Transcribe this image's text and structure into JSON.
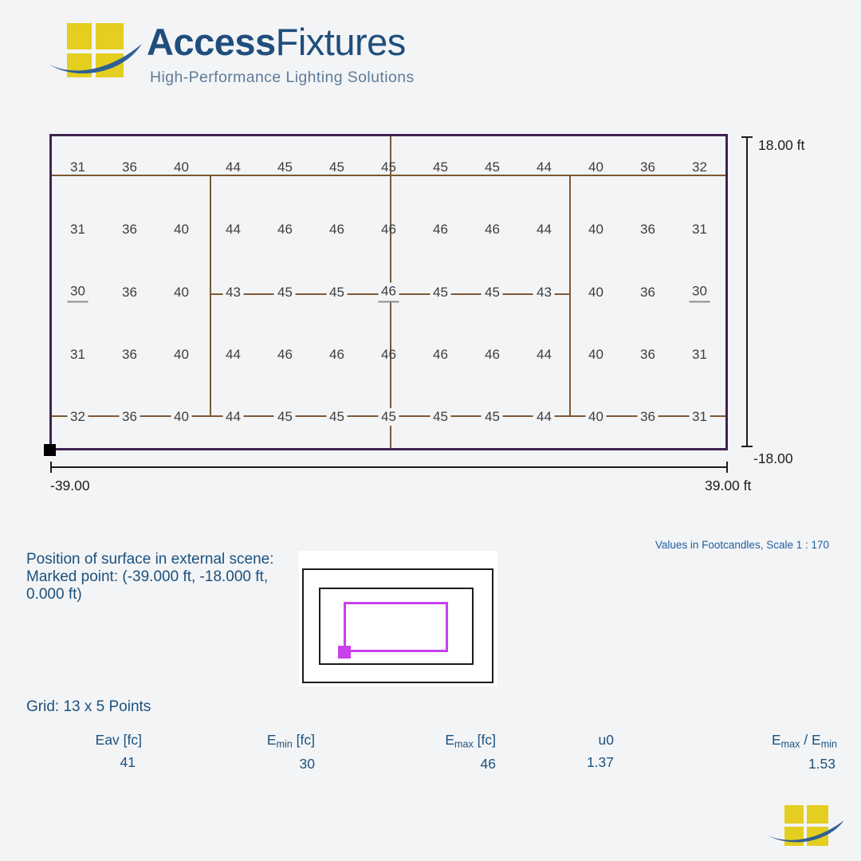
{
  "logo": {
    "brand_bold": "Access",
    "brand_light": "Fixtures",
    "tagline": "High-Performance Lighting Solutions",
    "colors": {
      "pane_yellow": "#e4ce1f",
      "swoosh_blue": "#2e6095",
      "brand_blue": "#1f4e7c",
      "tagline_gray": "#5e7c9a"
    }
  },
  "diagram": {
    "grid": {
      "rows": [
        [
          31,
          36,
          40,
          44,
          45,
          45,
          45,
          45,
          45,
          44,
          40,
          36,
          32
        ],
        [
          31,
          36,
          40,
          44,
          46,
          46,
          46,
          46,
          46,
          44,
          40,
          36,
          31
        ],
        [
          30,
          36,
          40,
          43,
          45,
          45,
          46,
          45,
          45,
          43,
          40,
          36,
          30
        ],
        [
          31,
          36,
          40,
          44,
          46,
          46,
          46,
          46,
          46,
          44,
          40,
          36,
          31
        ],
        [
          32,
          36,
          40,
          44,
          45,
          45,
          45,
          45,
          45,
          44,
          40,
          36,
          31
        ]
      ],
      "underlined_cells": [
        [
          2,
          0
        ],
        [
          2,
          6
        ],
        [
          2,
          12
        ]
      ],
      "masked_rows": [
        2,
        4
      ]
    },
    "dimensions": {
      "top_right": "18.00 ft",
      "bottom_right": "-18.00",
      "bottom_left": "-39.00",
      "bottom_far_right": "39.00 ft"
    },
    "scale_note": "Values in Footcandles, Scale 1 : 170",
    "colors": {
      "boundary_purple": "#3e2352",
      "court_line_brown": "#7d5833",
      "marker_black": "#000000",
      "value_gray": "#3d3d3d"
    }
  },
  "position_note": {
    "line1": "Position of surface in external scene:",
    "line2": "Marked point: (-39.000 ft, -18.000 ft,",
    "line3": "0.000 ft)"
  },
  "minimap": {
    "colors": {
      "outline_black": "#1c1c1c",
      "surface_magenta": "#c840e8",
      "background_white": "#ffffff"
    }
  },
  "grid_label": "Grid: 13 x 5 Points",
  "stats": [
    {
      "key": "eav",
      "label": [
        {
          "t": "Eav"
        },
        {
          "t": " [fc]"
        }
      ],
      "value": "41"
    },
    {
      "key": "emin",
      "label": [
        {
          "t": "E"
        },
        {
          "t": "min",
          "sub": true
        },
        {
          "t": " [fc]"
        }
      ],
      "value": "30"
    },
    {
      "key": "emax",
      "label": [
        {
          "t": "E"
        },
        {
          "t": "max",
          "sub": true
        },
        {
          "t": " [fc]"
        }
      ],
      "value": "46"
    },
    {
      "key": "u0",
      "label": [
        {
          "t": "u0"
        }
      ],
      "value": "1.37"
    },
    {
      "key": "emax-emin",
      "label": [
        {
          "t": "E"
        },
        {
          "t": "max",
          "sub": true
        },
        {
          "t": " / E"
        },
        {
          "t": "min",
          "sub": true
        }
      ],
      "value": "1.53"
    }
  ]
}
